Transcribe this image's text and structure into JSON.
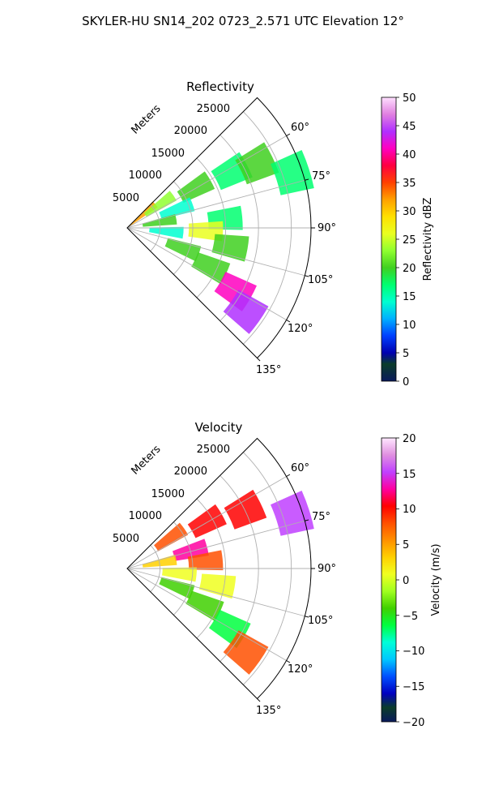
{
  "figure": {
    "suptitle": "SKYLER-HU  SN14_202  0723_2.571 UTC Elevation 12°"
  },
  "chart_data": [
    {
      "type": "heatmap",
      "projection": "polar-sector",
      "title": "Reflectivity",
      "radial_axis_label": "Meters",
      "radial_ticks": [
        "5000",
        "10000",
        "15000",
        "20000",
        "25000"
      ],
      "radial_tick_values": [
        5000,
        10000,
        15000,
        20000,
        25000
      ],
      "rlim": [
        0,
        28000
      ],
      "theta_ticks": [
        "60°",
        "75°",
        "90°",
        "105°",
        "120°",
        "135°"
      ],
      "theta_tick_values": [
        60,
        75,
        90,
        105,
        120,
        135
      ],
      "thetalim": [
        45,
        135
      ],
      "theta_zero": "north",
      "theta_direction": "clockwise",
      "grid": true,
      "colorbar": {
        "label": "Reflectivity dBZ",
        "range": [
          0,
          50
        ],
        "ticks": [
          "0",
          "5",
          "10",
          "15",
          "20",
          "25",
          "30",
          "35",
          "40",
          "45",
          "50"
        ],
        "tick_values": [
          0,
          5,
          10,
          15,
          20,
          25,
          30,
          35,
          40,
          45,
          50
        ]
      },
      "cells": [
        {
          "az": 50,
          "r": 3000,
          "value": 32
        },
        {
          "az": 55,
          "r": 6000,
          "value": 24
        },
        {
          "az": 60,
          "r": 12000,
          "value": 20
        },
        {
          "az": 62,
          "r": 18000,
          "value": 19
        },
        {
          "az": 64,
          "r": 22000,
          "value": 20
        },
        {
          "az": 70,
          "r": 8000,
          "value": 14
        },
        {
          "az": 72,
          "r": 26500,
          "value": 18
        },
        {
          "az": 80,
          "r": 5000,
          "value": 22
        },
        {
          "az": 85,
          "r": 15000,
          "value": 19
        },
        {
          "az": 92,
          "r": 12000,
          "value": 28
        },
        {
          "az": 95,
          "r": 6000,
          "value": 14
        },
        {
          "az": 100,
          "r": 16000,
          "value": 20
        },
        {
          "az": 110,
          "r": 9000,
          "value": 21
        },
        {
          "az": 115,
          "r": 14000,
          "value": 22
        },
        {
          "az": 120,
          "r": 19000,
          "value": 42
        },
        {
          "az": 125,
          "r": 22000,
          "value": 45
        }
      ]
    },
    {
      "type": "heatmap",
      "projection": "polar-sector",
      "title": "Velocity",
      "radial_axis_label": "Meters",
      "radial_ticks": [
        "5000",
        "10000",
        "15000",
        "20000",
        "25000"
      ],
      "radial_tick_values": [
        5000,
        10000,
        15000,
        20000,
        25000
      ],
      "rlim": [
        0,
        28000
      ],
      "theta_ticks": [
        "60°",
        "75°",
        "90°",
        "105°",
        "120°",
        "135°"
      ],
      "theta_tick_values": [
        60,
        75,
        90,
        105,
        120,
        135
      ],
      "thetalim": [
        45,
        135
      ],
      "theta_zero": "north",
      "theta_direction": "clockwise",
      "grid": true,
      "colorbar": {
        "label": "Velocity (m/s)",
        "range": [
          -20,
          20
        ],
        "ticks": [
          "−20",
          "−15",
          "−10",
          "−5",
          "0",
          "5",
          "10",
          "15",
          "20"
        ],
        "tick_values": [
          -20,
          -15,
          -10,
          -5,
          0,
          5,
          10,
          15,
          20
        ]
      },
      "cells": [
        {
          "az": 55,
          "r": 8000,
          "value": 9
        },
        {
          "az": 60,
          "r": 14000,
          "value": 11
        },
        {
          "az": 64,
          "r": 20000,
          "value": 12
        },
        {
          "az": 72,
          "r": 26500,
          "value": 16
        },
        {
          "az": 75,
          "r": 10000,
          "value": 14
        },
        {
          "az": 80,
          "r": 5000,
          "value": 5
        },
        {
          "az": 85,
          "r": 12000,
          "value": 8
        },
        {
          "az": 95,
          "r": 8000,
          "value": 2
        },
        {
          "az": 100,
          "r": 14000,
          "value": 1
        },
        {
          "az": 110,
          "r": 8000,
          "value": -2
        },
        {
          "az": 115,
          "r": 13000,
          "value": -4
        },
        {
          "az": 120,
          "r": 18000,
          "value": -6
        },
        {
          "az": 125,
          "r": 22000,
          "value": 8
        }
      ]
    }
  ]
}
